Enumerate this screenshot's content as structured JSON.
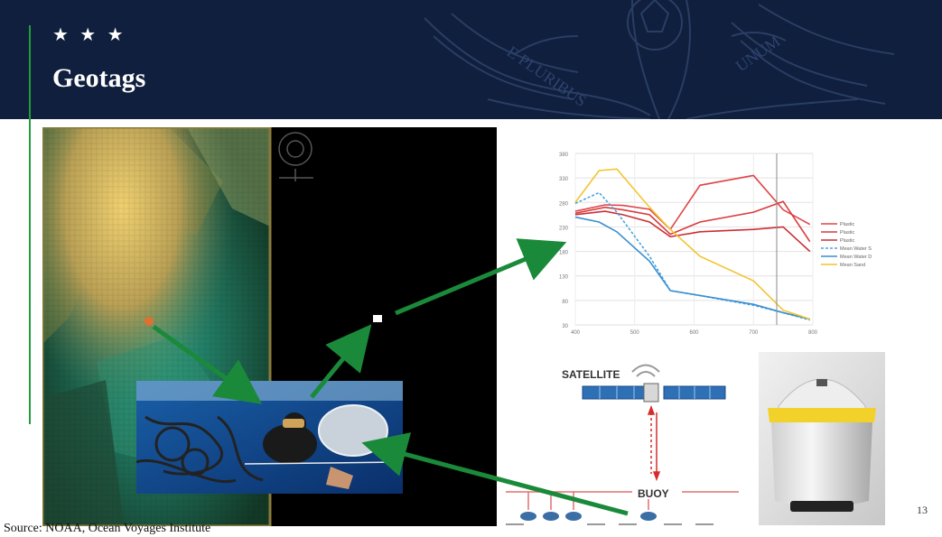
{
  "slide": {
    "stars": "★ ★ ★",
    "title": "Geotags",
    "source": "Source: NOAA, Ocean Voyages Institute",
    "page_number": "13"
  },
  "seal": {
    "motto_left": "E PLURIBUS",
    "motto_right": "UNUM"
  },
  "chart_data": {
    "type": "line",
    "x_ticks": [
      "400",
      "500",
      "600",
      "700",
      "800"
    ],
    "y_ticks": [
      "30",
      "80",
      "130",
      "180",
      "230",
      "280",
      "330",
      "380"
    ],
    "legend": [
      "Plastic",
      "Plastic",
      "Plastic",
      "Mean Water S",
      "Mean Water D",
      "Mean Sand"
    ],
    "series": [
      {
        "name": "Plastic",
        "x": [
          400,
          450,
          480,
          525,
          560,
          610,
          700,
          750,
          795
        ],
        "y": [
          262,
          275,
          274,
          266,
          225,
          315,
          335,
          265,
          235
        ],
        "color": "#e0454a",
        "dash": false
      },
      {
        "name": "Plastic",
        "x": [
          400,
          450,
          480,
          525,
          560,
          610,
          700,
          750,
          795
        ],
        "y": [
          258,
          270,
          265,
          255,
          215,
          240,
          260,
          282,
          200
        ],
        "color": "#d93a3d",
        "dash": false
      },
      {
        "name": "Plastic",
        "x": [
          400,
          450,
          480,
          525,
          560,
          610,
          700,
          750,
          795
        ],
        "y": [
          255,
          262,
          255,
          240,
          210,
          220,
          225,
          230,
          180
        ],
        "color": "#c93035",
        "dash": false
      },
      {
        "name": "Mean Water S",
        "x": [
          400,
          440,
          470,
          525,
          560,
          610,
          700,
          750,
          795
        ],
        "y": [
          278,
          300,
          260,
          170,
          100,
          90,
          70,
          55,
          40
        ],
        "color": "#4aa3e0",
        "dash": true
      },
      {
        "name": "Mean Water D",
        "x": [
          400,
          440,
          470,
          525,
          560,
          610,
          700,
          750,
          795
        ],
        "y": [
          250,
          240,
          220,
          160,
          100,
          90,
          72,
          55,
          42
        ],
        "color": "#3a8fd0",
        "dash": false
      },
      {
        "name": "Mean Sand",
        "x": [
          400,
          440,
          470,
          525,
          560,
          610,
          700,
          750,
          795
        ],
        "y": [
          280,
          345,
          348,
          270,
          225,
          170,
          120,
          60,
          42
        ],
        "color": "#f4c430",
        "dash": false
      }
    ],
    "xlim": [
      400,
      800
    ],
    "ylim": [
      30,
      380
    ],
    "grid": true,
    "legend_position": "right"
  },
  "diagram": {
    "satellite_label": "SATELLITE",
    "buoy_label": "BUOY"
  },
  "colors": {
    "header": "#0f1f3d",
    "accent_green": "#1f9d3a",
    "arrow_green": "#1a8a3a"
  }
}
